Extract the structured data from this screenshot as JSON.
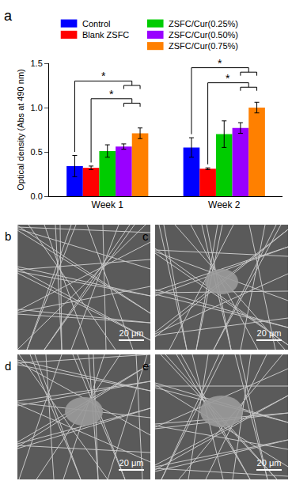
{
  "chart_data": {
    "type": "bar",
    "panel_label": "a",
    "y_label": "Optical density (Abs at 490 nm)",
    "categories": [
      "Week 1",
      "Week 2"
    ],
    "series": [
      {
        "name": "Control",
        "color": "#0000ff",
        "values": [
          0.34,
          0.55
        ],
        "errors": [
          0.12,
          0.11
        ]
      },
      {
        "name": "Blank ZSFC",
        "color": "#ff0000",
        "values": [
          0.32,
          0.31
        ],
        "errors": [
          0.02,
          0.01
        ]
      },
      {
        "name": "ZSFC/Cur(0.25%)",
        "color": "#00cc00",
        "values": [
          0.51,
          0.7
        ],
        "errors": [
          0.07,
          0.15
        ]
      },
      {
        "name": "ZSFC/Cur(0.50%)",
        "color": "#9900ff",
        "values": [
          0.56,
          0.77
        ],
        "errors": [
          0.03,
          0.06
        ]
      },
      {
        "name": "ZSFC/Cur(0.75%)",
        "color": "#ff8000",
        "values": [
          0.71,
          1.0
        ],
        "errors": [
          0.06,
          0.06
        ]
      }
    ],
    "ylim": [
      0,
      1.5
    ],
    "yticks": [
      {
        "value": 0,
        "label": "0.0"
      },
      {
        "value": 0.5,
        "label": "0.5"
      },
      {
        "value": 1,
        "label": "1.0"
      },
      {
        "value": 1.5,
        "label": "1.5"
      }
    ],
    "annotations": [
      "*",
      "*",
      "*",
      "*"
    ],
    "legend": "top",
    "grid": false
  },
  "micrographs": [
    {
      "label": "b",
      "scale_bar": "20 μm"
    },
    {
      "label": "c",
      "scale_bar": "20 μm"
    },
    {
      "label": "d",
      "scale_bar": "20 μm"
    },
    {
      "label": "e",
      "scale_bar": "20 μm"
    }
  ]
}
